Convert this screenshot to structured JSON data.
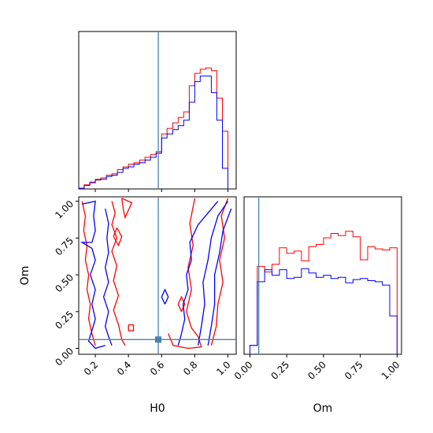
{
  "chart_data": {
    "type": "corner",
    "parameters": [
      "H0",
      "Om"
    ],
    "truths": {
      "H0": 0.58,
      "Om": 0.06
    },
    "colors": {
      "red": "#ff0000",
      "blue": "#0000ff",
      "truth": "#4682b4"
    },
    "panels": [
      {
        "type": "histogram",
        "parameter": "H0",
        "xlim": [
          0.1,
          1.05
        ],
        "bin_edges": [
          0.1,
          0.133,
          0.167,
          0.2,
          0.233,
          0.267,
          0.3,
          0.333,
          0.367,
          0.4,
          0.433,
          0.467,
          0.5,
          0.533,
          0.567,
          0.6,
          0.633,
          0.667,
          0.7,
          0.733,
          0.767,
          0.8,
          0.833,
          0.867,
          0.9,
          0.933,
          0.967,
          1.0
        ],
        "series": [
          {
            "name": "red",
            "values": [
              0.5,
              3,
              5,
              7,
              8,
              10,
              11,
              14,
              16,
              18,
              19,
              21,
              23,
              25,
              27,
              40,
              44,
              48,
              52,
              56,
              75,
              84,
              87,
              88,
              86,
              66,
              42
            ]
          },
          {
            "name": "blue",
            "values": [
              0.5,
              2.5,
              4.5,
              6.5,
              7,
              9,
              10,
              12,
              15,
              16,
              18,
              19,
              21,
              23,
              26,
              37,
              40,
              43,
              46,
              50,
              63,
              78,
              82,
              82,
              70,
              50,
              15
            ]
          }
        ]
      },
      {
        "type": "contour",
        "x": "H0",
        "y": "Om",
        "xlim": [
          0.1,
          1.05
        ],
        "ylim": [
          -0.04,
          1.03
        ],
        "xticks": [
          "0.2",
          "0.4",
          "0.6",
          "0.8",
          "1.0"
        ],
        "yticks": [
          "0.00",
          "0.25",
          "0.50",
          "0.75",
          "1.00"
        ],
        "xlabel": "H0",
        "ylabel": "Om",
        "contours": [
          {
            "color": "red",
            "points": [
              [
                0.12,
                1.0
              ],
              [
                0.14,
                0.9
              ],
              [
                0.13,
                0.8
              ],
              [
                0.15,
                0.7
              ],
              [
                0.14,
                0.6
              ],
              [
                0.16,
                0.5
              ],
              [
                0.15,
                0.4
              ],
              [
                0.17,
                0.3
              ],
              [
                0.16,
                0.2
              ],
              [
                0.18,
                0.1
              ],
              [
                0.2,
                0.02
              ]
            ]
          },
          {
            "color": "red",
            "points": [
              [
                0.3,
                1.0
              ],
              [
                0.32,
                0.92
              ],
              [
                0.3,
                0.84
              ],
              [
                0.33,
                0.75
              ],
              [
                0.3,
                0.66
              ],
              [
                0.33,
                0.56
              ],
              [
                0.31,
                0.46
              ],
              [
                0.34,
                0.36
              ],
              [
                0.31,
                0.26
              ],
              [
                0.34,
                0.16
              ],
              [
                0.36,
                0.06
              ],
              [
                0.38,
                0.02
              ]
            ]
          },
          {
            "color": "red",
            "points": [
              [
                0.36,
                1.02
              ],
              [
                0.42,
                0.99
              ],
              [
                0.4,
                0.94
              ],
              [
                0.38,
                0.89
              ],
              [
                0.37,
                0.94
              ],
              [
                0.36,
                1.02
              ]
            ]
          },
          {
            "color": "red",
            "points": [
              [
                0.64,
                0.1
              ],
              [
                0.67,
                0.02
              ],
              [
                0.76,
                0.0
              ],
              [
                0.84,
                0.01
              ],
              [
                0.82,
                0.08
              ],
              [
                0.78,
                0.14
              ],
              [
                0.75,
                0.25
              ],
              [
                0.78,
                0.4
              ],
              [
                0.76,
                0.55
              ],
              [
                0.79,
                0.7
              ],
              [
                0.77,
                0.85
              ],
              [
                0.8,
                1.02
              ]
            ]
          },
          {
            "color": "red",
            "points": [
              [
                1.0,
                1.02
              ],
              [
                0.96,
                0.9
              ],
              [
                0.98,
                0.75
              ],
              [
                0.95,
                0.6
              ],
              [
                0.97,
                0.45
              ],
              [
                0.94,
                0.3
              ],
              [
                0.93,
                0.15
              ],
              [
                0.9,
                0.02
              ]
            ]
          },
          {
            "color": "red",
            "points": [
              [
                0.72,
                0.25
              ],
              [
                0.7,
                0.3
              ],
              [
                0.72,
                0.35
              ],
              [
                0.74,
                0.3
              ],
              [
                0.72,
                0.25
              ]
            ]
          },
          {
            "color": "red",
            "points": [
              [
                0.4,
                0.16
              ],
              [
                0.43,
                0.16
              ],
              [
                0.43,
                0.12
              ],
              [
                0.4,
                0.12
              ],
              [
                0.4,
                0.16
              ]
            ]
          },
          {
            "color": "red",
            "points": [
              [
                0.33,
                0.82
              ],
              [
                0.36,
                0.76
              ],
              [
                0.34,
                0.7
              ],
              [
                0.31,
                0.76
              ],
              [
                0.33,
                0.82
              ]
            ]
          },
          {
            "color": "blue",
            "points": [
              [
                0.12,
                0.98
              ],
              [
                0.2,
                1.0
              ],
              [
                0.19,
                0.9
              ],
              [
                0.2,
                0.8
              ],
              [
                0.18,
                0.72
              ],
              [
                0.12,
                0.72
              ],
              [
                0.18,
                0.68
              ],
              [
                0.2,
                0.6
              ],
              [
                0.17,
                0.5
              ],
              [
                0.2,
                0.4
              ],
              [
                0.18,
                0.3
              ],
              [
                0.2,
                0.2
              ],
              [
                0.18,
                0.12
              ],
              [
                0.16,
                0.05
              ],
              [
                0.2,
                0.0
              ],
              [
                0.26,
                0.02
              ]
            ]
          },
          {
            "color": "blue",
            "points": [
              [
                0.26,
                0.95
              ],
              [
                0.28,
                0.85
              ],
              [
                0.27,
                0.75
              ],
              [
                0.28,
                0.65
              ],
              [
                0.26,
                0.55
              ],
              [
                0.28,
                0.45
              ],
              [
                0.25,
                0.35
              ],
              [
                0.28,
                0.25
              ],
              [
                0.26,
                0.15
              ],
              [
                0.28,
                0.08
              ],
              [
                0.3,
                0.02
              ]
            ]
          },
          {
            "color": "blue",
            "points": [
              [
                0.7,
                0.02
              ],
              [
                0.72,
                0.1
              ],
              [
                0.74,
                0.2
              ],
              [
                0.73,
                0.3
              ],
              [
                0.76,
                0.4
              ],
              [
                0.75,
                0.5
              ],
              [
                0.78,
                0.6
              ],
              [
                0.77,
                0.72
              ],
              [
                0.82,
                0.84
              ],
              [
                0.88,
                0.92
              ],
              [
                0.94,
                1.0
              ]
            ]
          },
          {
            "color": "blue",
            "points": [
              [
                0.82,
                0.02
              ],
              [
                0.84,
                0.15
              ],
              [
                0.86,
                0.3
              ],
              [
                0.85,
                0.45
              ],
              [
                0.88,
                0.6
              ],
              [
                0.9,
                0.75
              ],
              [
                0.94,
                0.9
              ],
              [
                1.0,
                1.0
              ]
            ]
          },
          {
            "color": "blue",
            "points": [
              [
                0.88,
                0.02
              ],
              [
                0.9,
                0.15
              ],
              [
                0.92,
                0.3
              ],
              [
                0.92,
                0.5
              ],
              [
                0.95,
                0.65
              ],
              [
                0.97,
                0.8
              ],
              [
                1.02,
                0.95
              ]
            ]
          },
          {
            "color": "blue",
            "points": [
              [
                0.62,
                0.3
              ],
              [
                0.6,
                0.35
              ],
              [
                0.62,
                0.4
              ],
              [
                0.64,
                0.35
              ],
              [
                0.62,
                0.3
              ]
            ]
          }
        ]
      },
      {
        "type": "histogram",
        "parameter": "Om",
        "xlim": [
          -0.04,
          1.03
        ],
        "xticks": [
          "0.00",
          "0.25",
          "0.50",
          "0.75",
          "1.00"
        ],
        "xlabel": "Om",
        "bin_edges": [
          0.0,
          0.05,
          0.1,
          0.15,
          0.2,
          0.25,
          0.3,
          0.35,
          0.4,
          0.45,
          0.5,
          0.55,
          0.6,
          0.65,
          0.7,
          0.75,
          0.8,
          0.85,
          0.9,
          0.95,
          1.0
        ],
        "series": [
          {
            "name": "red",
            "values": [
              8,
              80,
              75,
              82,
              97,
              92,
              94,
              85,
              98,
              100,
              106,
              110,
              108,
              112,
              107,
              86,
              98,
              96,
              95,
              97
            ]
          },
          {
            "name": "blue",
            "values": [
              8,
              66,
              77,
              72,
              77,
              69,
              70,
              78,
              74,
              70,
              72,
              69,
              70,
              65,
              68,
              69,
              67,
              66,
              63,
              35
            ]
          }
        ]
      }
    ]
  }
}
